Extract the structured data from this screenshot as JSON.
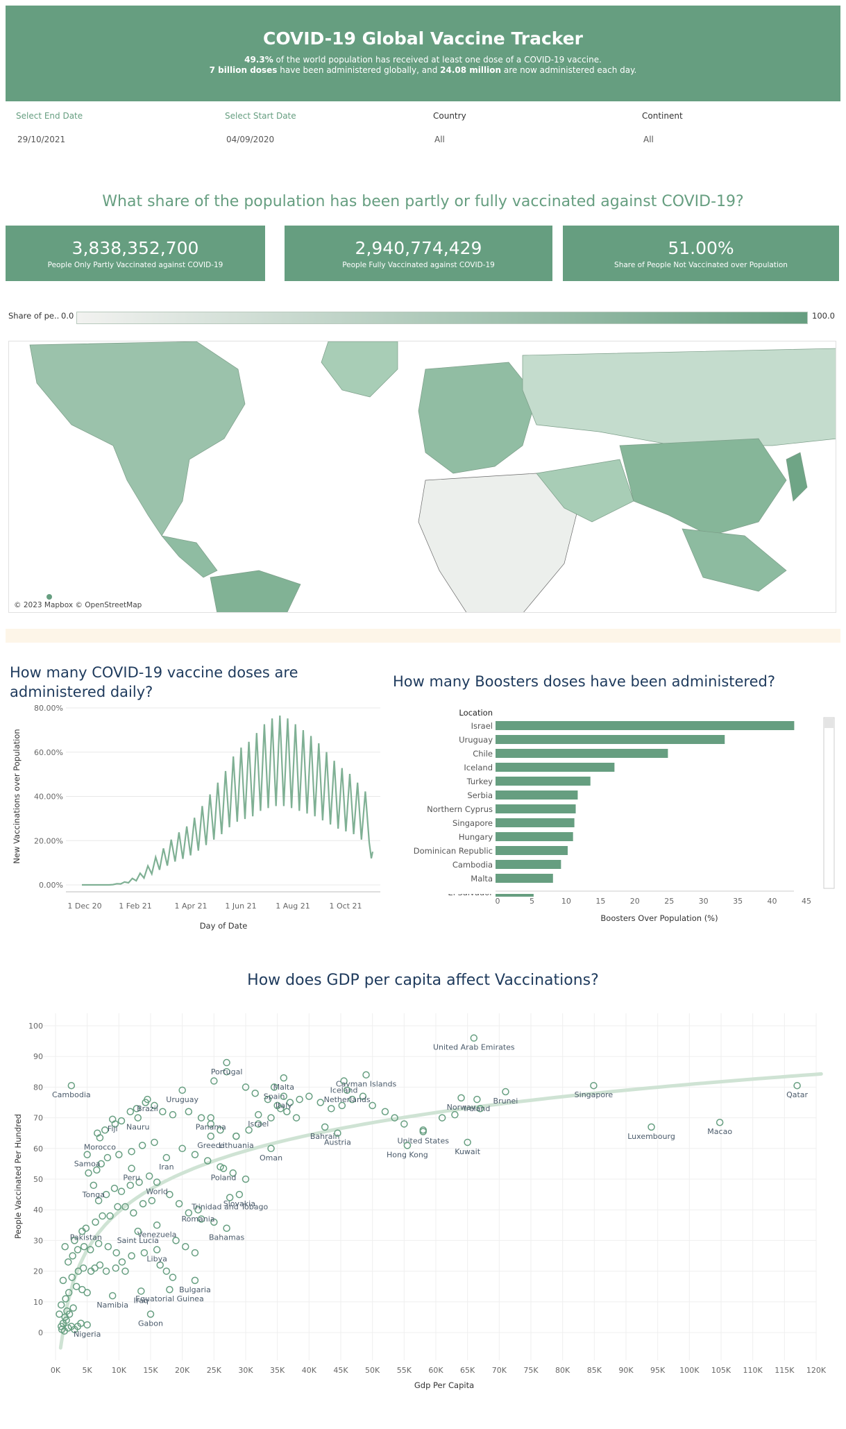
{
  "header": {
    "title": "COVID-19 Global Vaccine Tracker",
    "line1_bold": "49.3%",
    "line1_rest": " of the world population has received at least one dose of a COVID-19 vaccine.",
    "line2_bold1": "7 billion doses",
    "line2_mid": " have been administered globally, and ",
    "line2_bold2": "24.08 million",
    "line2_rest": " are now administered each day."
  },
  "filters": [
    {
      "label": "Select End Date",
      "value": "29/10/2021"
    },
    {
      "label": "Select Start Date",
      "value": "04/09/2020"
    },
    {
      "label": "Country",
      "value": "All"
    },
    {
      "label": "Continent",
      "value": "All"
    }
  ],
  "share_title": "What share of the population has been partly or fully vaccinated against COVID-19?",
  "kpis": [
    {
      "value": "3,838,352,700",
      "caption": "People Only Partly Vaccinated against COVID-19"
    },
    {
      "value": "2,940,774,429",
      "caption": "People Fully Vaccinated against COVID-19"
    },
    {
      "value": "51.00%",
      "caption": "Share of People Not Vaccinated over Population"
    }
  ],
  "legend": {
    "label": "Share of pe..",
    "min": "0.0",
    "max": "100.0",
    "color_low": "#f2f2f0",
    "color_high": "#669e80"
  },
  "map": {
    "attribution": "© 2023 Mapbox © OpenStreetMap"
  },
  "colors": {
    "accent": "#669e80",
    "title_navy": "#1e3a5c",
    "separator": "#fdf5e8"
  },
  "chart_data": [
    {
      "type": "line",
      "title": "How many COVID-19 vaccine doses are administered daily?",
      "title_lines": [
        "How many COVID-19 vaccine doses are",
        "administered daily?"
      ],
      "xlabel": "Day of Date",
      "ylabel": "New Vaccinations over Population",
      "x_ticks": [
        "1 Dec 20",
        "1 Feb 21",
        "1 Apr 21",
        "1 Jun 21",
        "1 Aug 21",
        "1 Oct 21"
      ],
      "y_ticks": [
        "0.00%",
        "20.00%",
        "40.00%",
        "60.00%",
        "80.00%"
      ],
      "ylim": [
        0,
        80
      ],
      "series": [
        {
          "values": [
            0,
            0,
            0,
            0,
            0,
            0,
            0,
            0,
            0.2,
            0.4,
            0.7,
            1,
            1.5,
            2.2,
            3,
            4,
            5,
            6.5,
            8,
            9.5,
            11,
            12.5,
            14,
            15.5,
            17,
            18,
            19,
            20,
            21.5,
            23,
            25,
            27,
            29,
            31,
            33,
            35,
            37,
            39,
            42,
            44,
            46,
            47,
            48,
            49,
            50,
            52,
            54,
            55,
            56,
            57,
            57.5,
            58,
            57.5,
            57,
            56,
            55,
            54,
            53,
            52,
            51,
            50,
            48.5,
            47,
            45.5,
            44,
            42.5,
            41,
            40,
            39,
            38,
            37,
            35,
            33,
            32,
            31
          ]
        }
      ]
    },
    {
      "type": "bar",
      "title": "How many Boosters doses have been administered?",
      "column_header": "Location",
      "xlabel": "Boosters Over Population (%)",
      "x_ticks": [
        "0",
        "5",
        "10",
        "15",
        "20",
        "25",
        "30",
        "35",
        "40",
        "45"
      ],
      "xlim": [
        0,
        46
      ],
      "categories": [
        "Israel",
        "Uruguay",
        "Chile",
        "Iceland",
        "Turkey",
        "Serbia",
        "Northern Cyprus",
        "Singapore",
        "Hungary",
        "Dominican Republic",
        "Cambodia",
        "Malta",
        "El Salvador"
      ],
      "values": [
        44.7,
        34.3,
        25.8,
        17.8,
        14.2,
        12.3,
        12.0,
        11.8,
        11.6,
        10.8,
        9.8,
        8.6,
        5.7
      ]
    },
    {
      "type": "scatter",
      "title": "How does GDP per capita affect Vaccinations?",
      "xlabel": "Gdp Per Capita",
      "ylabel": "People Vaccinated Per Hundred",
      "xlim": [
        0,
        120000
      ],
      "ylim": [
        0,
        100
      ],
      "x_ticks": [
        "0K",
        "5K",
        "10K",
        "15K",
        "20K",
        "25K",
        "30K",
        "35K",
        "40K",
        "45K",
        "50K",
        "55K",
        "60K",
        "65K",
        "70K",
        "75K",
        "80K",
        "85K",
        "90K",
        "95K",
        "100K",
        "105K",
        "110K",
        "115K",
        "120K"
      ],
      "y_ticks": [
        "0",
        "10",
        "20",
        "30",
        "40",
        "50",
        "60",
        "70",
        "80",
        "90",
        "100"
      ],
      "labeled_points": [
        {
          "label": "United Arab Emirates",
          "x": 66000,
          "y": 96
        },
        {
          "label": "Portugal",
          "x": 27000,
          "y": 88
        },
        {
          "label": "Malta",
          "x": 36000,
          "y": 83
        },
        {
          "label": "Iceland",
          "x": 45500,
          "y": 82
        },
        {
          "label": "Cayman Islands",
          "x": 49000,
          "y": 84
        },
        {
          "label": "Spain",
          "x": 34500,
          "y": 80
        },
        {
          "label": "Cambodia",
          "x": 2500,
          "y": 80.5
        },
        {
          "label": "Brazil",
          "x": 14500,
          "y": 76
        },
        {
          "label": "Italy",
          "x": 36000,
          "y": 77
        },
        {
          "label": "Netherlands",
          "x": 46000,
          "y": 79
        },
        {
          "label": "Uruguay",
          "x": 20000,
          "y": 79
        },
        {
          "label": "Norway",
          "x": 64000,
          "y": 76.5
        },
        {
          "label": "Brunei",
          "x": 71000,
          "y": 78.5
        },
        {
          "label": "Singapore",
          "x": 84900,
          "y": 80.5
        },
        {
          "label": "Qatar",
          "x": 117000,
          "y": 80.5
        },
        {
          "label": "Ireland",
          "x": 66500,
          "y": 76
        },
        {
          "label": "Fiji",
          "x": 9000,
          "y": 69.5
        },
        {
          "label": "Nauru",
          "x": 13000,
          "y": 70
        },
        {
          "label": "Panama",
          "x": 24500,
          "y": 70
        },
        {
          "label": "Israel",
          "x": 32000,
          "y": 71
        },
        {
          "label": "United States",
          "x": 58000,
          "y": 65.5
        },
        {
          "label": "Luxembourg",
          "x": 94000,
          "y": 67
        },
        {
          "label": "Macao",
          "x": 104800,
          "y": 68.5
        },
        {
          "label": "Bahrain",
          "x": 42500,
          "y": 67
        },
        {
          "label": "Morocco",
          "x": 7000,
          "y": 63.5
        },
        {
          "label": "Greece",
          "x": 24500,
          "y": 64
        },
        {
          "label": "Lithuania",
          "x": 28500,
          "y": 64
        },
        {
          "label": "Austria",
          "x": 44500,
          "y": 65
        },
        {
          "label": "Hong Kong",
          "x": 55500,
          "y": 61
        },
        {
          "label": "Kuwait",
          "x": 65000,
          "y": 62
        },
        {
          "label": "Samoa",
          "x": 5000,
          "y": 58
        },
        {
          "label": "Iran",
          "x": 17500,
          "y": 57
        },
        {
          "label": "Oman",
          "x": 34000,
          "y": 60
        },
        {
          "label": "Poland",
          "x": 26500,
          "y": 53.5
        },
        {
          "label": "Peru",
          "x": 12000,
          "y": 53.5
        },
        {
          "label": "Tonga",
          "x": 6000,
          "y": 48
        },
        {
          "label": "World",
          "x": 16000,
          "y": 49
        },
        {
          "label": "Slovakia",
          "x": 29000,
          "y": 45
        },
        {
          "label": "Romania",
          "x": 22500,
          "y": 40
        },
        {
          "label": "Trinidad and Tobago",
          "x": 27500,
          "y": 44
        },
        {
          "label": "Pakistan",
          "x": 4800,
          "y": 34
        },
        {
          "label": "Bahamas",
          "x": 27000,
          "y": 34
        },
        {
          "label": "Venezuela",
          "x": 16000,
          "y": 35
        },
        {
          "label": "Saint Lucia",
          "x": 13000,
          "y": 33
        },
        {
          "label": "Libya",
          "x": 16000,
          "y": 27
        },
        {
          "label": "Bulgaria",
          "x": 22000,
          "y": 17
        },
        {
          "label": "Equatorial Guinea",
          "x": 18000,
          "y": 14
        },
        {
          "label": "Iraq",
          "x": 13500,
          "y": 13.5
        },
        {
          "label": "Namibia",
          "x": 9000,
          "y": 12
        },
        {
          "label": "Gabon",
          "x": 15000,
          "y": 6
        },
        {
          "label": "Nigeria",
          "x": 5000,
          "y": 2.5
        }
      ],
      "unlabeled_points": [
        [
          1000,
          1
        ],
        [
          1200,
          3
        ],
        [
          1500,
          5
        ],
        [
          1800,
          7
        ],
        [
          900,
          2
        ],
        [
          1400,
          0.5
        ],
        [
          2000,
          1.5
        ],
        [
          2500,
          2
        ],
        [
          3000,
          1
        ],
        [
          1700,
          4
        ],
        [
          2200,
          6
        ],
        [
          2800,
          8
        ],
        [
          3500,
          2
        ],
        [
          4000,
          3
        ],
        [
          600,
          6
        ],
        [
          900,
          9
        ],
        [
          1600,
          11
        ],
        [
          2100,
          13
        ],
        [
          3300,
          15
        ],
        [
          4200,
          14
        ],
        [
          5000,
          13
        ],
        [
          1200,
          17
        ],
        [
          2600,
          18
        ],
        [
          3600,
          20
        ],
        [
          4400,
          21
        ],
        [
          5600,
          20
        ],
        [
          6200,
          21
        ],
        [
          7000,
          22
        ],
        [
          8000,
          20
        ],
        [
          9500,
          21
        ],
        [
          11000,
          20
        ],
        [
          2000,
          23
        ],
        [
          2700,
          25
        ],
        [
          3500,
          27
        ],
        [
          4500,
          28
        ],
        [
          5500,
          27
        ],
        [
          6800,
          29
        ],
        [
          8300,
          28
        ],
        [
          9600,
          26
        ],
        [
          10500,
          23
        ],
        [
          12000,
          25
        ],
        [
          14000,
          26
        ],
        [
          1500,
          28
        ],
        [
          3000,
          30
        ],
        [
          4200,
          33
        ],
        [
          6300,
          36
        ],
        [
          7400,
          38
        ],
        [
          8600,
          38
        ],
        [
          9800,
          41
        ],
        [
          11000,
          41
        ],
        [
          12300,
          39
        ],
        [
          13800,
          42
        ],
        [
          15200,
          43
        ],
        [
          6800,
          43
        ],
        [
          8000,
          45
        ],
        [
          9300,
          47
        ],
        [
          10400,
          46
        ],
        [
          11800,
          48
        ],
        [
          13200,
          49
        ],
        [
          14800,
          51
        ],
        [
          5200,
          52
        ],
        [
          6500,
          53
        ],
        [
          7200,
          55
        ],
        [
          8200,
          57
        ],
        [
          10000,
          58
        ],
        [
          12000,
          59
        ],
        [
          13700,
          61
        ],
        [
          15600,
          62
        ],
        [
          6600,
          65
        ],
        [
          7800,
          66
        ],
        [
          9400,
          68
        ],
        [
          10400,
          69
        ],
        [
          11800,
          72
        ],
        [
          12800,
          73
        ],
        [
          14200,
          75
        ],
        [
          15600,
          74
        ],
        [
          16900,
          72
        ],
        [
          18500,
          71
        ],
        [
          21000,
          72
        ],
        [
          23000,
          70
        ],
        [
          24500,
          68
        ],
        [
          26000,
          66
        ],
        [
          28500,
          64
        ],
        [
          30500,
          66
        ],
        [
          32000,
          68
        ],
        [
          34000,
          70
        ],
        [
          35500,
          73
        ],
        [
          37000,
          75
        ],
        [
          38500,
          76
        ],
        [
          40000,
          77
        ],
        [
          41800,
          75
        ],
        [
          43500,
          73
        ],
        [
          45200,
          74
        ],
        [
          46800,
          76
        ],
        [
          48500,
          77
        ],
        [
          50000,
          74
        ],
        [
          52000,
          72
        ],
        [
          53500,
          70
        ],
        [
          55000,
          68
        ],
        [
          58000,
          66
        ],
        [
          61000,
          70
        ],
        [
          63000,
          71
        ],
        [
          67000,
          73
        ],
        [
          25000,
          82
        ],
        [
          27000,
          85
        ],
        [
          30000,
          80
        ],
        [
          31500,
          78
        ],
        [
          33500,
          76
        ],
        [
          35000,
          74
        ],
        [
          36500,
          72
        ],
        [
          38000,
          70
        ],
        [
          20000,
          60
        ],
        [
          22000,
          58
        ],
        [
          24000,
          56
        ],
        [
          26000,
          54
        ],
        [
          28000,
          52
        ],
        [
          30000,
          50
        ],
        [
          18000,
          45
        ],
        [
          19500,
          42
        ],
        [
          21000,
          39
        ],
        [
          23000,
          37
        ],
        [
          25000,
          36
        ],
        [
          19000,
          30
        ],
        [
          20500,
          28
        ],
        [
          22000,
          26
        ],
        [
          16500,
          22
        ],
        [
          17500,
          20
        ],
        [
          18500,
          18
        ]
      ],
      "trend": {
        "note": "logarithmic trend line"
      }
    }
  ]
}
